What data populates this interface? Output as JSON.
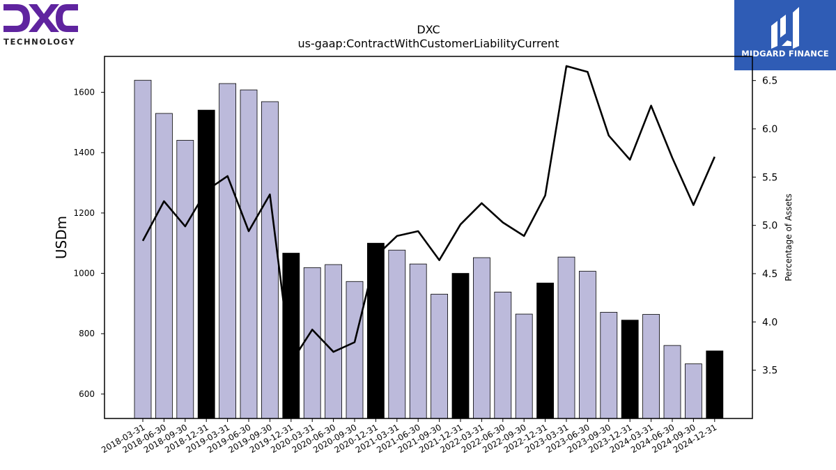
{
  "branding": {
    "dxc_logo_text": "DXC",
    "dxc_tagline": "TECHNOLOGY",
    "midgard_label": "MIDGARD FINANCE",
    "dxc_color": "#5f249f",
    "midgard_color": "#2f5cb5"
  },
  "chart_data": {
    "type": "bar",
    "title": "DXC",
    "subtitle": "us-gaap:ContractWithCustomerLiabilityCurrent",
    "ylabel": "USDm",
    "y2label": "Percentage of Assets",
    "ylim": [
      519,
      1719
    ],
    "y2lim": [
      3.0,
      6.75
    ],
    "yticks": [
      600,
      800,
      1000,
      1200,
      1400,
      1600
    ],
    "y2ticks": [
      3.5,
      4.0,
      4.5,
      5.0,
      5.5,
      6.0,
      6.5
    ],
    "categories": [
      "2018-03-31",
      "2018-06-30",
      "2018-09-30",
      "2018-12-31",
      "2019-03-31",
      "2019-06-30",
      "2019-09-30",
      "2019-12-31",
      "2020-03-31",
      "2020-06-30",
      "2020-09-30",
      "2020-12-31",
      "2021-03-31",
      "2021-06-30",
      "2021-09-30",
      "2021-12-31",
      "2022-03-31",
      "2022-06-30",
      "2022-09-30",
      "2022-12-31",
      "2023-03-31",
      "2023-06-30",
      "2023-09-30",
      "2023-12-31",
      "2024-03-31",
      "2024-06-30",
      "2024-09-30",
      "2024-12-31"
    ],
    "series": [
      {
        "kind": "bar",
        "values": [
          1640,
          1530,
          1441,
          1541,
          1629,
          1608,
          1569,
          1067,
          1019,
          1029,
          973,
          1100,
          1077,
          1031,
          931,
          1000,
          1052,
          938,
          865,
          968,
          1054,
          1007,
          871,
          845,
          864,
          761,
          700,
          743
        ],
        "highlight": [
          false,
          false,
          false,
          true,
          false,
          false,
          false,
          true,
          false,
          false,
          false,
          true,
          false,
          false,
          false,
          true,
          false,
          false,
          false,
          true,
          false,
          false,
          false,
          true,
          false,
          false,
          false,
          true
        ],
        "color": "#bcbadb",
        "highlight_color": "#000000"
      },
      {
        "kind": "line",
        "axis": "right",
        "values": [
          4.84,
          5.25,
          4.99,
          5.36,
          5.51,
          4.94,
          5.32,
          3.58,
          3.92,
          3.69,
          3.79,
          4.68,
          4.89,
          4.94,
          4.64,
          5.01,
          5.23,
          5.03,
          4.89,
          5.31,
          6.65,
          6.59,
          5.93,
          5.68,
          6.24,
          5.7,
          5.21,
          5.71
        ],
        "color": "#000000"
      }
    ],
    "grid": false,
    "legend": "none"
  }
}
